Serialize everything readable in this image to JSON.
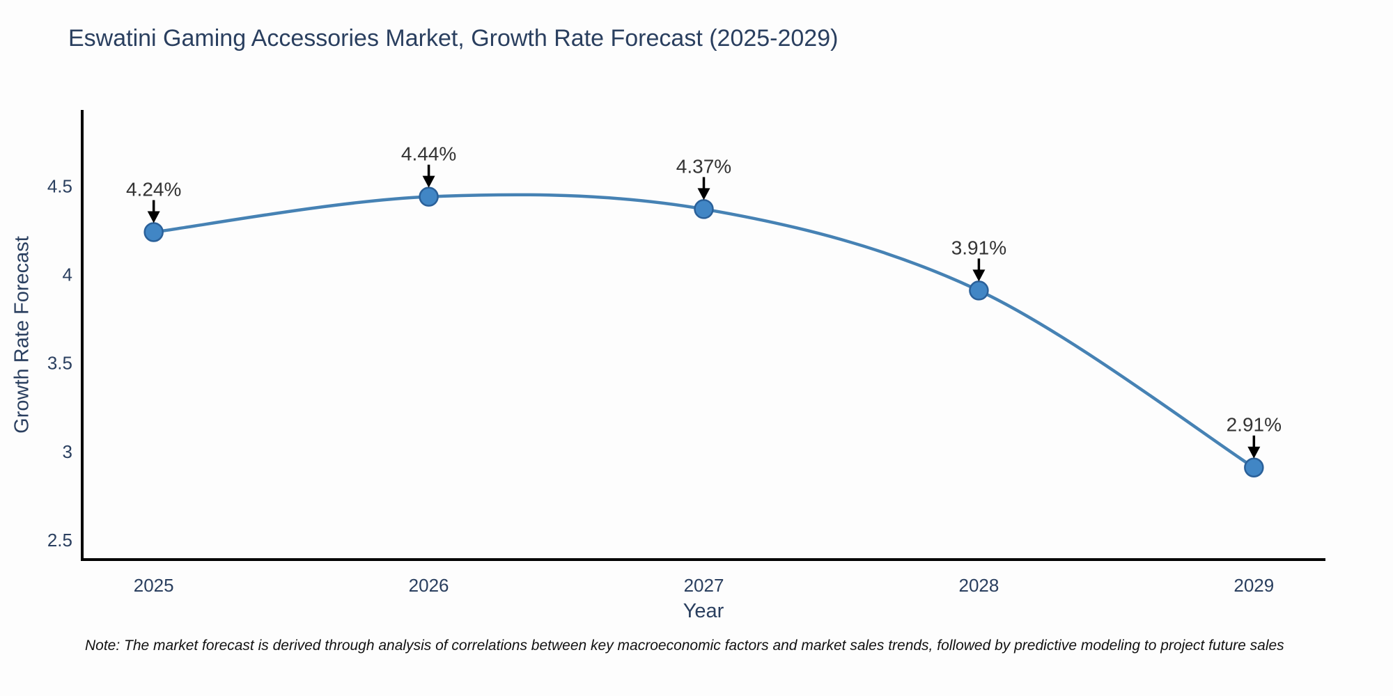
{
  "title": "Eswatini Gaming Accessories Market, Growth Rate Forecast (2025-2029)",
  "note": "Note: The market forecast is derived through analysis of correlations between key macroeconomic factors and market sales trends, followed by predictive modeling to project future sales",
  "chart_data": {
    "type": "line",
    "title": "Eswatini Gaming Accessories Market, Growth Rate Forecast (2025-2029)",
    "xlabel": "Year",
    "ylabel": "Growth Rate Forecast",
    "x": [
      2025,
      2026,
      2027,
      2028,
      2029
    ],
    "y": [
      4.24,
      4.44,
      4.37,
      3.91,
      2.91
    ],
    "point_labels": [
      "4.24%",
      "4.44%",
      "4.37%",
      "3.91%",
      "2.91%"
    ],
    "x_tick_labels": [
      "2025",
      "2026",
      "2027",
      "2028",
      "2029"
    ],
    "y_tick_values": [
      2.5,
      3,
      3.5,
      4,
      4.5
    ],
    "y_tick_labels": [
      "2.5",
      "3",
      "3.5",
      "4",
      "4.5"
    ],
    "xlim": [
      2024.74,
      2029.26
    ],
    "ylim": [
      2.39,
      4.93
    ],
    "grid": false,
    "legend": false,
    "line_shape": "spline",
    "colors": {
      "line": "#4682b4",
      "marker_fill": "#4186c5",
      "marker_edge": "#2a6099",
      "axis": "#000000",
      "tick_text": "#2a3f5f",
      "title_text": "#2a3f5f",
      "annotation_text": "#333333",
      "arrow": "#000000",
      "background": "#fdfdfd"
    }
  }
}
